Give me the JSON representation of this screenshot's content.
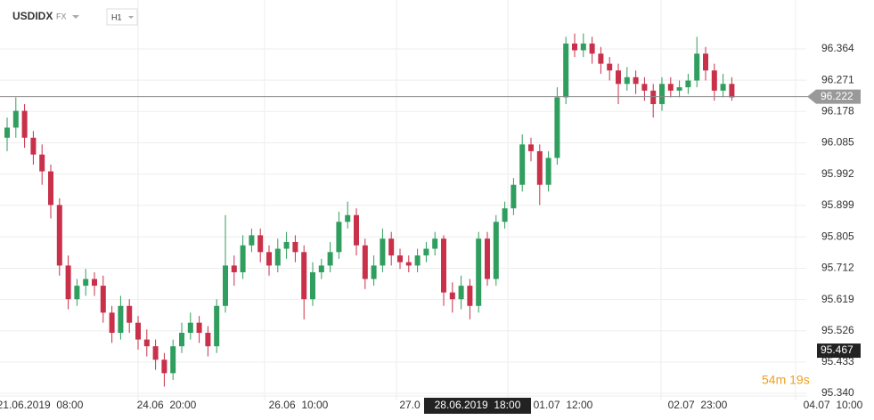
{
  "chart_data": {
    "type": "candlestick",
    "symbol": "USDIDX",
    "market": "FX",
    "timeframe": "H1",
    "up_color": "#2f9e5e",
    "down_color": "#c9304a",
    "open": [
      96.1,
      96.13,
      96.18,
      96.1,
      96.05,
      96.0,
      95.9,
      95.72,
      95.62,
      95.66,
      95.68,
      95.66,
      95.58,
      95.52,
      95.6,
      95.55,
      95.5,
      95.48,
      95.44,
      95.4,
      95.48,
      95.52,
      95.55,
      95.52,
      95.48,
      95.6,
      95.72,
      95.7,
      95.78,
      95.81,
      95.76,
      95.72,
      95.77,
      95.79,
      95.76,
      95.62,
      95.7,
      95.72,
      95.76,
      95.85,
      95.87,
      95.78,
      95.68,
      95.72,
      95.8,
      95.75,
      95.73,
      95.72,
      95.75,
      95.77,
      95.8,
      95.64,
      95.62,
      95.66,
      95.6,
      95.8,
      95.68,
      95.85,
      95.89,
      95.96,
      96.08,
      96.06,
      95.96,
      96.04,
      96.22,
      96.38,
      96.36,
      96.38,
      96.35,
      96.32,
      96.3,
      96.26,
      96.28,
      96.26,
      96.24,
      96.2,
      96.26,
      96.24,
      96.25,
      96.27,
      96.35,
      96.3,
      96.24,
      96.26
    ],
    "high": [
      96.16,
      96.22,
      96.2,
      96.12,
      96.08,
      96.02,
      95.92,
      95.75,
      95.68,
      95.71,
      95.7,
      95.69,
      95.6,
      95.63,
      95.62,
      95.57,
      95.53,
      95.5,
      95.46,
      95.5,
      95.55,
      95.58,
      95.57,
      95.54,
      95.62,
      95.87,
      95.75,
      95.81,
      95.83,
      95.83,
      95.78,
      95.8,
      95.82,
      95.81,
      95.78,
      95.73,
      95.74,
      95.79,
      95.88,
      95.91,
      95.89,
      95.8,
      95.75,
      95.83,
      95.82,
      95.77,
      95.75,
      95.77,
      95.79,
      95.82,
      95.81,
      95.67,
      95.69,
      95.68,
      95.82,
      95.82,
      95.87,
      95.91,
      95.98,
      96.11,
      96.1,
      96.08,
      96.06,
      96.25,
      96.4,
      96.41,
      96.41,
      96.4,
      96.37,
      96.34,
      96.32,
      96.31,
      96.3,
      96.28,
      96.26,
      96.28,
      96.28,
      96.27,
      96.29,
      96.4,
      96.37,
      96.32,
      96.29,
      96.28
    ],
    "low": [
      96.06,
      96.1,
      96.07,
      96.02,
      95.96,
      95.86,
      95.69,
      95.59,
      95.6,
      95.63,
      95.63,
      95.55,
      95.49,
      95.5,
      95.52,
      95.47,
      95.45,
      95.41,
      95.36,
      95.38,
      95.46,
      95.5,
      95.49,
      95.45,
      95.46,
      95.58,
      95.66,
      95.68,
      95.76,
      95.73,
      95.69,
      95.7,
      95.74,
      95.73,
      95.56,
      95.6,
      95.68,
      95.7,
      95.74,
      95.83,
      95.75,
      95.65,
      95.66,
      95.7,
      95.72,
      95.71,
      95.7,
      95.7,
      95.73,
      95.75,
      95.6,
      95.58,
      95.59,
      95.56,
      95.58,
      95.66,
      95.66,
      95.83,
      95.87,
      95.94,
      96.03,
      95.9,
      95.94,
      96.02,
      96.2,
      96.34,
      96.34,
      96.32,
      96.29,
      96.27,
      96.2,
      96.24,
      96.23,
      96.21,
      96.16,
      96.18,
      96.22,
      96.22,
      96.23,
      96.25,
      96.27,
      96.21,
      96.22,
      96.21
    ],
    "close": [
      96.13,
      96.18,
      96.1,
      96.05,
      96.0,
      95.9,
      95.72,
      95.62,
      95.66,
      95.68,
      95.66,
      95.58,
      95.52,
      95.6,
      95.55,
      95.5,
      95.48,
      95.44,
      95.4,
      95.48,
      95.52,
      95.55,
      95.52,
      95.48,
      95.6,
      95.72,
      95.7,
      95.78,
      95.81,
      95.76,
      95.72,
      95.77,
      95.79,
      95.76,
      95.62,
      95.7,
      95.72,
      95.76,
      95.85,
      95.87,
      95.78,
      95.68,
      95.72,
      95.8,
      95.75,
      95.73,
      95.72,
      95.75,
      95.77,
      95.8,
      95.64,
      95.62,
      95.66,
      95.6,
      95.8,
      95.68,
      95.85,
      95.89,
      95.96,
      96.08,
      96.06,
      95.96,
      96.04,
      96.22,
      96.38,
      96.36,
      96.38,
      96.35,
      96.32,
      96.3,
      96.26,
      96.28,
      96.26,
      96.24,
      96.2,
      96.26,
      96.24,
      96.25,
      96.27,
      96.35,
      96.3,
      96.24,
      96.26,
      96.22
    ],
    "ylim": [
      95.319,
      96.483
    ],
    "yticks": [
      96.364,
      96.271,
      96.178,
      96.085,
      95.992,
      95.899,
      95.805,
      95.712,
      95.619,
      95.526,
      95.433,
      {
        "value": 95.34,
        "label": "95.340"
      }
    ],
    "x_labels": [
      "21.06.2019  08:00",
      "24.06  20:00",
      "26.06  10:00",
      "27.0",
      "01.07  12:00",
      "02.07  23:00",
      "04.07  10:00"
    ],
    "crosshair_label": "28.06.2019  18:00",
    "current_price": 96.222,
    "low_marker": 95.467,
    "countdown": "54m 19s",
    "grid": true
  }
}
